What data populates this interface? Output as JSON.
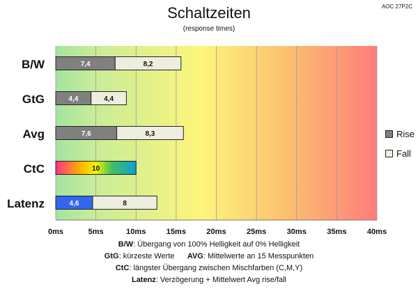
{
  "model": "AOC 27P2C",
  "chart_data": {
    "type": "bar",
    "orientation": "horizontal",
    "stacked": true,
    "title": "Schaltzeiten",
    "subtitle": "(response times)",
    "categories": [
      "B/W",
      "GtG",
      "Avg",
      "CtC",
      "Latenz"
    ],
    "series": [
      {
        "name": "Rise",
        "values": [
          7.4,
          4.4,
          7.6,
          10,
          4.6
        ]
      },
      {
        "name": "Fall",
        "values": [
          8.2,
          4.4,
          8.3,
          null,
          8
        ]
      }
    ],
    "value_labels": [
      [
        "7,4",
        "8,2"
      ],
      [
        "4,4",
        "4,4"
      ],
      [
        "7,6",
        "8,3"
      ],
      [
        "10",
        ""
      ],
      [
        "4,6",
        "8"
      ]
    ],
    "xlim": [
      0,
      40
    ],
    "xticks": [
      0,
      5,
      10,
      15,
      20,
      25,
      30,
      35,
      40
    ],
    "xtick_labels": [
      "0ms",
      "5ms",
      "10ms",
      "15ms",
      "20ms",
      "25ms",
      "30ms",
      "35ms",
      "40ms"
    ],
    "grid": true,
    "legend_position": "right",
    "colors": {
      "rise": "#808080",
      "fall": "#eeeee0",
      "latenz_rise": "#3366ee",
      "background_gradient": [
        "#a8e6a0",
        "#fdf77a",
        "#ff8080"
      ]
    }
  },
  "notes": [
    {
      "label": "B/W",
      "text": ":  Übergang von 100% Helligkeit auf 0% Helligkeit"
    },
    {
      "label": "GtG",
      "text": ": kürzeste  Werte",
      "label2": "AVG",
      "text2": ": Mittelwerte  an 15 Messpunkten"
    },
    {
      "label": "CtC",
      "text": ": längster Übergang  zwischen Mischfarben (C,M,Y)"
    },
    {
      "label": "Latenz",
      "text": ": Verzögerung  + Mittelwert Avg rise/fall"
    }
  ]
}
